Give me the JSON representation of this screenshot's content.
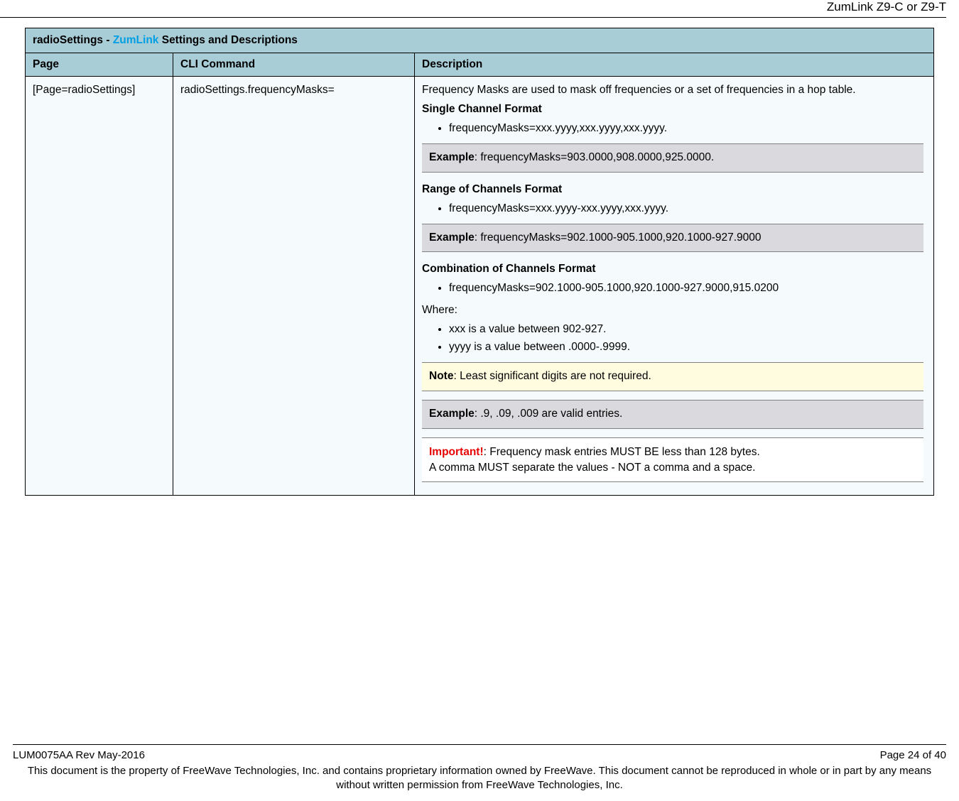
{
  "header": {
    "product": "ZumLink Z9-C or Z9-T"
  },
  "table": {
    "title_prefix": "radioSettings - ",
    "title_brand": "ZumLink",
    "title_suffix": " Settings and Descriptions",
    "columns": {
      "page": "Page",
      "cli": "CLI Command",
      "desc": "Description"
    },
    "row": {
      "page": "[Page=radioSettings]",
      "cli": "radioSettings.frequencyMasks=",
      "desc": {
        "intro": "Frequency Masks are used to mask off frequencies or a set of frequencies in a hop table.",
        "single_h": "Single Channel Format",
        "single_li": "frequencyMasks=xxx.yyyy,xxx.yyyy,xxx.yyyy.",
        "ex1_lbl": "Example",
        "ex1_txt": ": frequencyMasks=903.0000,908.0000,925.0000.",
        "range_h": "Range of Channels Format",
        "range_li": "frequencyMasks=xxx.yyyy-xxx.yyyy,xxx.yyyy.",
        "ex2_lbl": "Example",
        "ex2_txt": ": frequencyMasks=902.1000-905.1000,920.1000-927.9000",
        "combo_h": "Combination of Channels Format",
        "combo_li": "frequencyMasks=902.1000-905.1000,920.1000-927.9000,915.0200",
        "where": "Where:",
        "where_li1": "xxx is a value between 902-927.",
        "where_li2": "yyyy is a value between .0000-.9999.",
        "note_lbl": "Note",
        "note_txt": ": Least significant digits are not required.",
        "ex3_lbl": "Example",
        "ex3_txt": ": .9, .09, .009 are valid entries.",
        "imp_lbl": "Important!",
        "imp_txt1": ": Frequency mask entries MUST BE less than 128 bytes.",
        "imp_txt2": "A comma MUST separate the values - NOT a comma and a space."
      }
    }
  },
  "footer": {
    "rev": "LUM0075AA Rev May-2016",
    "page": "Page 24 of 40",
    "legal": "This document is the property of FreeWave Technologies, Inc. and contains proprietary information owned by FreeWave. This document cannot be reproduced in whole or in part by any means without written permission from FreeWave Technologies, Inc."
  }
}
